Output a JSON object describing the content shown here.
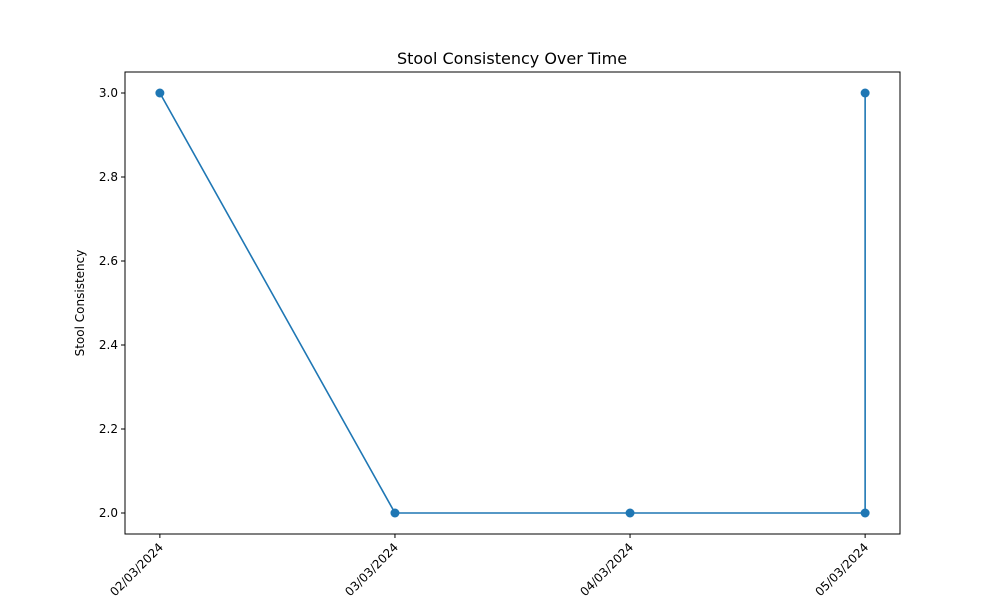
{
  "chart_data": {
    "type": "line",
    "title": "Stool Consistency Over Time",
    "xlabel": "",
    "ylabel": "Stool Consistency",
    "categories": [
      "02/03/2024",
      "03/03/2024",
      "04/03/2024",
      "05/03/2024"
    ],
    "x": [
      "02/03/2024",
      "03/03/2024",
      "04/03/2024",
      "05/03/2024",
      "05/03/2024"
    ],
    "series": [
      {
        "values": [
          3.0,
          2.0,
          2.0,
          2.0,
          3.0
        ],
        "color": "#1f77b4",
        "marker": "circle"
      }
    ],
    "ylim": [
      1.95,
      3.05
    ],
    "yticks": [
      "2.0",
      "2.2",
      "2.4",
      "2.6",
      "2.8",
      "3.0"
    ],
    "grid": false,
    "legend": "none"
  }
}
